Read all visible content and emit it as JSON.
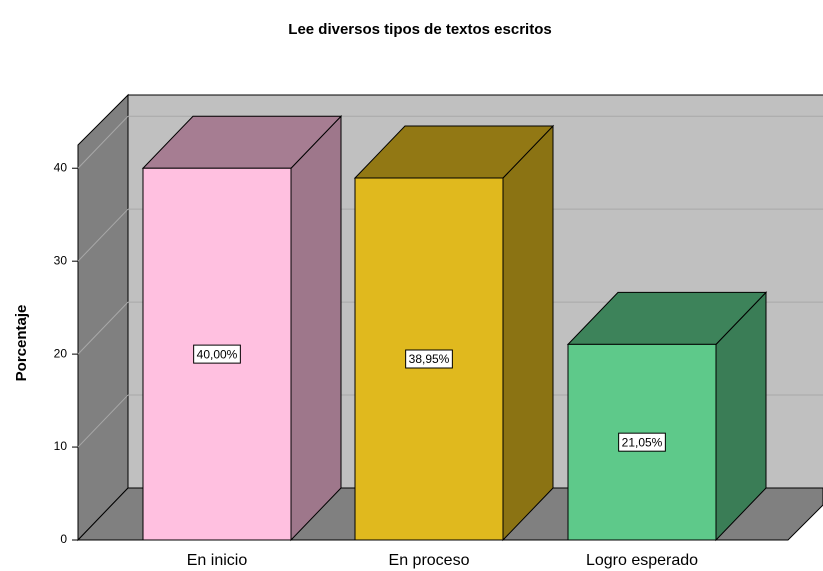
{
  "chart_data": {
    "type": "bar3d",
    "title": "Lee diversos tipos de textos escritos",
    "y_label": "Porcentaje",
    "categories": [
      "En inicio",
      "En proceso",
      "Logro esperado"
    ],
    "values": [
      40.0,
      38.95,
      21.05
    ],
    "value_labels": [
      "40,00%",
      "38,95%",
      "21,05%"
    ],
    "colors": [
      "#ffc0e0",
      "#e0b91e",
      "#5ec98a"
    ],
    "ylim": [
      0,
      42.5
    ],
    "yticks": [
      0,
      10,
      20,
      30,
      40
    ],
    "grid": true
  }
}
